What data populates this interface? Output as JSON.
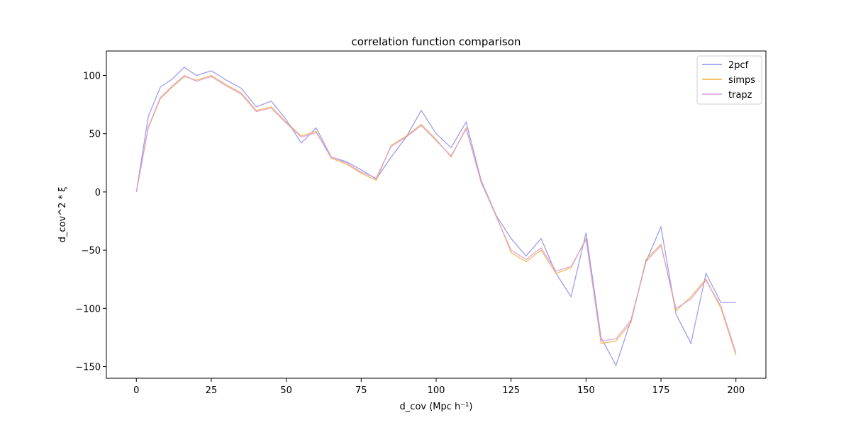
{
  "chart_data": {
    "type": "line",
    "title": "correlation function comparison",
    "xlabel": "d_cov (Mpc h⁻¹)",
    "ylabel": "d_cov^2 * ξ",
    "xlim": [
      -10,
      210
    ],
    "ylim": [
      -160,
      121
    ],
    "xticks": [
      0,
      25,
      50,
      75,
      100,
      125,
      150,
      175,
      200
    ],
    "yticks": [
      -150,
      -100,
      -50,
      0,
      50,
      100
    ],
    "grid": false,
    "legend": "top-right",
    "series": [
      {
        "name": "2pcf",
        "color": "#8c8cf0",
        "x": [
          0,
          4,
          8,
          12,
          16,
          20,
          25,
          30,
          35,
          40,
          45,
          50,
          55,
          60,
          65,
          70,
          75,
          80,
          85,
          90,
          95,
          100,
          105,
          110,
          115,
          120,
          125,
          130,
          135,
          140,
          145,
          150,
          155,
          160,
          165,
          170,
          175,
          180,
          185,
          190,
          195,
          200
        ],
        "y": [
          0,
          65,
          90,
          97,
          107,
          100,
          104,
          96,
          89,
          73,
          78,
          62,
          42,
          55,
          30,
          26,
          19,
          11,
          30,
          47,
          70,
          50,
          38,
          60,
          10,
          -20,
          -40,
          -55,
          -40,
          -70,
          -90,
          -35,
          -125,
          -149,
          -110,
          -60,
          -30,
          -105,
          -130,
          -70,
          -95,
          -95
        ]
      },
      {
        "name": "simps",
        "color": "#f5ad3d",
        "x": [
          0,
          4,
          8,
          12,
          16,
          20,
          25,
          30,
          35,
          40,
          45,
          50,
          55,
          60,
          65,
          70,
          75,
          80,
          85,
          90,
          95,
          100,
          105,
          110,
          115,
          120,
          125,
          130,
          135,
          140,
          145,
          150,
          155,
          160,
          165,
          170,
          175,
          180,
          185,
          190,
          195,
          200
        ],
        "y": [
          0,
          55,
          80,
          90,
          99,
          96,
          100,
          92,
          85,
          70,
          73,
          60,
          48,
          52,
          29,
          24,
          16,
          10,
          40,
          48,
          58,
          45,
          30,
          55,
          8,
          -20,
          -52,
          -60,
          -50,
          -70,
          -65,
          -40,
          -130,
          -128,
          -112,
          -58,
          -45,
          -102,
          -90,
          -75,
          -100,
          -140
        ]
      },
      {
        "name": "trapz",
        "color": "#d89ad9",
        "x": [
          0,
          4,
          8,
          12,
          16,
          20,
          25,
          30,
          35,
          40,
          45,
          50,
          55,
          60,
          65,
          70,
          75,
          80,
          85,
          90,
          95,
          100,
          105,
          110,
          115,
          120,
          125,
          130,
          135,
          140,
          145,
          150,
          155,
          160,
          165,
          170,
          175,
          180,
          185,
          190,
          195,
          200
        ],
        "y": [
          0,
          56,
          81,
          91,
          100,
          95,
          99,
          91,
          84,
          69,
          72,
          59,
          47,
          51,
          30,
          25,
          17,
          12,
          39,
          47,
          57,
          44,
          31,
          54,
          9,
          -21,
          -50,
          -58,
          -48,
          -68,
          -64,
          -41,
          -128,
          -126,
          -110,
          -60,
          -46,
          -100,
          -92,
          -76,
          -98,
          -138
        ]
      }
    ]
  }
}
